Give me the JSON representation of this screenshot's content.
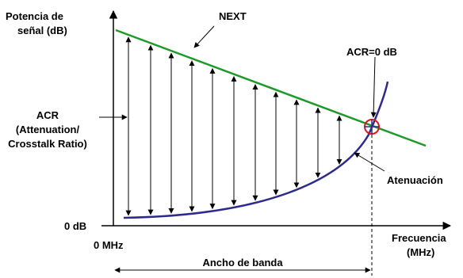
{
  "labels": {
    "y_axis_line1": "Potencia de",
    "y_axis_line2": "señal (dB)",
    "next": "NEXT",
    "acr_zero": "ACR=0 dB",
    "acr_line1": "ACR",
    "acr_line2": "(Attenuation/",
    "acr_line3": "Crosstalk Ratio)",
    "attenuation": "Atenuación",
    "zero_db": "0 dB",
    "zero_mhz": "0 MHz",
    "x_axis_line1": "Frecuencia",
    "x_axis_line2": "(MHz)",
    "bandwidth": "Ancho de banda"
  },
  "colors": {
    "next_line": "#1f9a2a",
    "attenuation_curve": "#2e2a8c",
    "crossing_marker": "#e0141e",
    "axes": "#000000"
  }
}
